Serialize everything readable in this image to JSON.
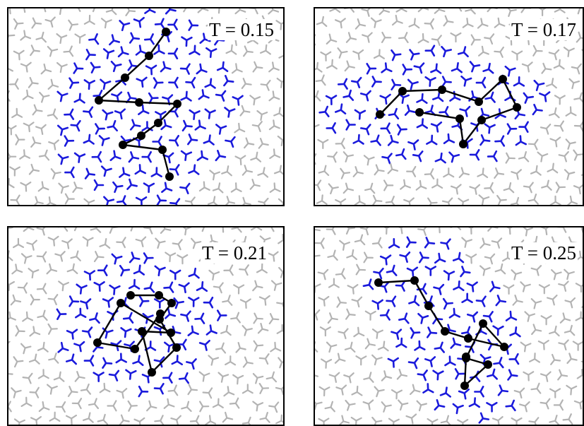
{
  "colors": {
    "background_trimers": "#b3b3b3",
    "cluster_trimers": "#1a1adc",
    "chain": "#000000",
    "frame": "#000000"
  },
  "panels": [
    {
      "label": "T = 0.15"
    },
    {
      "label": "T = 0.17"
    },
    {
      "label": "T = 0.21"
    },
    {
      "label": "T = 0.25"
    }
  ]
}
